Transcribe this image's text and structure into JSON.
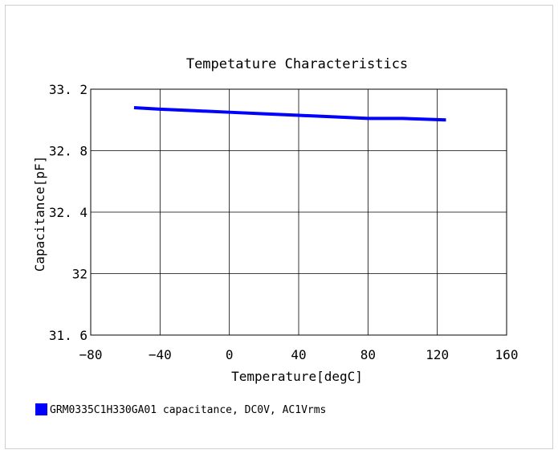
{
  "chart_data": {
    "type": "line",
    "title": "Tempetature  Characteristics",
    "xlabel": "Temperature[degC]",
    "ylabel": "Capacitance[pF]",
    "xlim": [
      -80,
      160
    ],
    "ylim": [
      31.6,
      33.2
    ],
    "x_ticks": [
      -80,
      -40,
      0,
      40,
      80,
      120,
      160
    ],
    "y_ticks": [
      31.6,
      32.0,
      32.4,
      32.8,
      33.2
    ],
    "x_tick_labels": [
      "−80",
      "−40",
      "0",
      "40",
      "80",
      "120",
      "160"
    ],
    "y_tick_labels": [
      "31. 6",
      "32",
      "32. 4",
      "32. 8",
      "33. 2"
    ],
    "grid": true,
    "series": [
      {
        "name": "GRM0335C1H330GA01 capacitance, DC0V, AC1Vrms",
        "color": "#0000ff",
        "x": [
          -55,
          -40,
          -20,
          0,
          20,
          40,
          60,
          80,
          100,
          125
        ],
        "y": [
          33.08,
          33.07,
          33.06,
          33.05,
          33.04,
          33.03,
          33.02,
          33.01,
          33.01,
          33.0
        ]
      }
    ],
    "legend_position": "bottom-left"
  }
}
